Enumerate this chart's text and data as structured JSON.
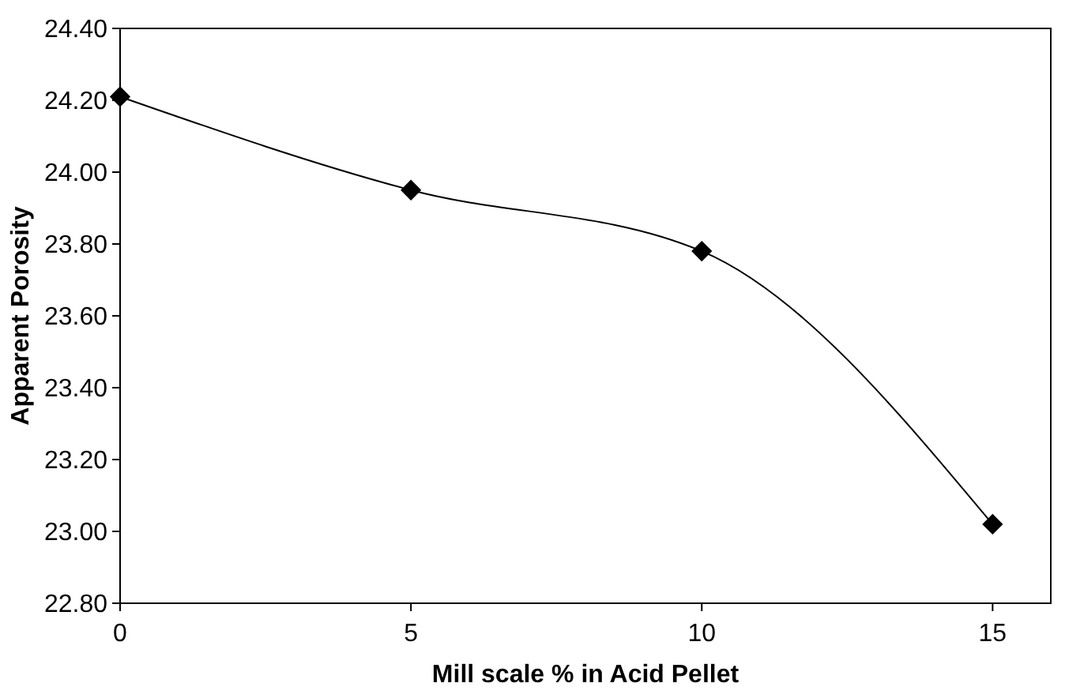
{
  "chart_data": {
    "type": "line",
    "xlabel": "Mill scale % in Acid Pellet",
    "ylabel": "Apparent Porosity",
    "x": [
      0,
      5,
      10,
      15
    ],
    "series": [
      {
        "color": "#000000",
        "values": [
          24.21,
          23.95,
          23.78,
          23.02
        ]
      }
    ],
    "xlim": [
      0,
      16
    ],
    "xticks": [
      0,
      5,
      10,
      15
    ],
    "ylim": [
      22.8,
      24.4
    ],
    "yticks": [
      {
        "value": 22.8,
        "label": "22.80"
      },
      {
        "value": 23.0,
        "label": "23.00"
      },
      {
        "value": 23.2,
        "label": "23.20"
      },
      {
        "value": 23.4,
        "label": "23.40"
      },
      {
        "value": 23.6,
        "label": "23.60"
      },
      {
        "value": 23.8,
        "label": "23.80"
      },
      {
        "value": 24.0,
        "label": "24.00"
      },
      {
        "value": 24.2,
        "label": "24.20"
      },
      {
        "value": 24.4,
        "label": "24.40"
      }
    ],
    "grid": false,
    "marker": "diamond",
    "line_style": "solid"
  }
}
